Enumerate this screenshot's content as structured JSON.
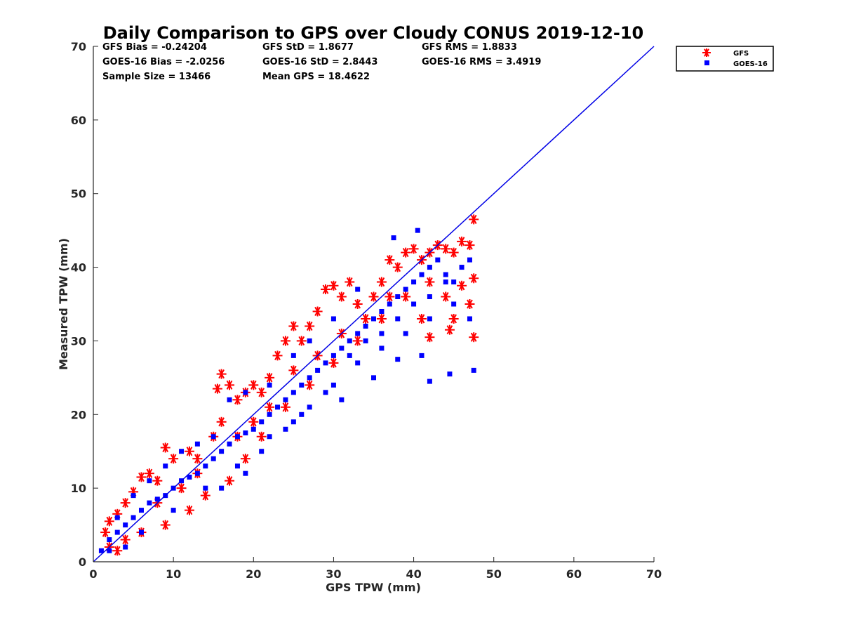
{
  "chart_data": {
    "type": "scatter",
    "title": "Daily Comparison to GPS over Cloudy CONUS 2019-12-10",
    "xlabel": "GPS TPW (mm)",
    "ylabel": "Measured TPW (mm)",
    "xlim": [
      0,
      70
    ],
    "ylim": [
      0,
      70
    ],
    "xticks": [
      "0",
      "10",
      "20",
      "30",
      "40",
      "50",
      "60",
      "70"
    ],
    "yticks": [
      "0",
      "10",
      "20",
      "30",
      "40",
      "50",
      "60",
      "70"
    ],
    "grid": false,
    "legend_position": "outside-top-right",
    "reference_line": {
      "name": "1:1 line",
      "x": [
        0,
        70
      ],
      "y": [
        0,
        70
      ],
      "color": "#0000e6"
    },
    "stats": [
      [
        "GFS Bias = -0.24204",
        "GFS StD = 1.8677",
        "GFS RMS = 1.8833"
      ],
      [
        "GOES-16 Bias = -2.0256",
        "GOES-16 StD = 2.8443",
        "GOES-16 RMS = 3.4919"
      ],
      [
        "Sample Size = 13466",
        "Mean GPS = 18.4622"
      ]
    ],
    "series": [
      {
        "name": "GFS",
        "marker": "asterisk",
        "color": "#ff0000",
        "points": [
          [
            1.5,
            4
          ],
          [
            2,
            5.5
          ],
          [
            3,
            6.5
          ],
          [
            4,
            8
          ],
          [
            5,
            9.5
          ],
          [
            6,
            11.5
          ],
          [
            7,
            12
          ],
          [
            8,
            11
          ],
          [
            9,
            15.5
          ],
          [
            10,
            14
          ],
          [
            12,
            15
          ],
          [
            13,
            14
          ],
          [
            15,
            17
          ],
          [
            16,
            19
          ],
          [
            15.5,
            23.5
          ],
          [
            16,
            25.5
          ],
          [
            17,
            24
          ],
          [
            18,
            22
          ],
          [
            19,
            23
          ],
          [
            20,
            24
          ],
          [
            21,
            23
          ],
          [
            22,
            25
          ],
          [
            23,
            28
          ],
          [
            24,
            30
          ],
          [
            25,
            32
          ],
          [
            26,
            30
          ],
          [
            27,
            32
          ],
          [
            28,
            34
          ],
          [
            29,
            37
          ],
          [
            30,
            37.5
          ],
          [
            31,
            36
          ],
          [
            32,
            38
          ],
          [
            33,
            35
          ],
          [
            35,
            36
          ],
          [
            36,
            38
          ],
          [
            37,
            41
          ],
          [
            38,
            40
          ],
          [
            39,
            42
          ],
          [
            40,
            42.5
          ],
          [
            41,
            41
          ],
          [
            42,
            42
          ],
          [
            43,
            43
          ],
          [
            44,
            42.5
          ],
          [
            45,
            42
          ],
          [
            46,
            43.5
          ],
          [
            47,
            43
          ],
          [
            47.5,
            46.5
          ],
          [
            47.5,
            38.5
          ],
          [
            47,
            35
          ],
          [
            47.5,
            30.5
          ],
          [
            45,
            33
          ],
          [
            44.5,
            31.5
          ],
          [
            42,
            30.5
          ],
          [
            41,
            33
          ],
          [
            44,
            36
          ],
          [
            46,
            37.5
          ],
          [
            2,
            2
          ],
          [
            3,
            1.5
          ],
          [
            4,
            3
          ],
          [
            6,
            4
          ],
          [
            9,
            5
          ],
          [
            12,
            7
          ],
          [
            14,
            9
          ],
          [
            17,
            11
          ],
          [
            19,
            14
          ],
          [
            21,
            17
          ],
          [
            24,
            21
          ],
          [
            27,
            24
          ],
          [
            30,
            27
          ],
          [
            33,
            30
          ],
          [
            36,
            33
          ],
          [
            39,
            36
          ],
          [
            42,
            38
          ],
          [
            8,
            8
          ],
          [
            11,
            10
          ],
          [
            13,
            12
          ],
          [
            18,
            17
          ],
          [
            20,
            19
          ],
          [
            22,
            21
          ],
          [
            25,
            26
          ],
          [
            28,
            28
          ],
          [
            31,
            31
          ],
          [
            34,
            33
          ],
          [
            37,
            36
          ]
        ]
      },
      {
        "name": "GOES-16",
        "marker": "square",
        "color": "#0000ff",
        "points": [
          [
            1,
            1.5
          ],
          [
            2,
            3
          ],
          [
            3,
            4
          ],
          [
            4,
            5
          ],
          [
            5,
            6
          ],
          [
            6,
            7
          ],
          [
            7,
            8
          ],
          [
            8,
            8.5
          ],
          [
            9,
            9
          ],
          [
            10,
            10
          ],
          [
            11,
            11
          ],
          [
            12,
            11.5
          ],
          [
            13,
            12
          ],
          [
            14,
            13
          ],
          [
            15,
            14
          ],
          [
            16,
            15
          ],
          [
            17,
            16
          ],
          [
            18,
            17
          ],
          [
            19,
            17.5
          ],
          [
            20,
            18
          ],
          [
            21,
            19
          ],
          [
            22,
            20
          ],
          [
            23,
            21
          ],
          [
            24,
            22
          ],
          [
            25,
            23
          ],
          [
            26,
            24
          ],
          [
            27,
            25
          ],
          [
            28,
            26
          ],
          [
            29,
            27
          ],
          [
            30,
            28
          ],
          [
            31,
            29
          ],
          [
            32,
            30
          ],
          [
            33,
            31
          ],
          [
            34,
            32
          ],
          [
            35,
            33
          ],
          [
            36,
            34
          ],
          [
            37,
            35
          ],
          [
            38,
            36
          ],
          [
            39,
            37
          ],
          [
            40,
            38
          ],
          [
            41,
            39
          ],
          [
            42,
            40
          ],
          [
            43,
            41
          ],
          [
            44,
            39
          ],
          [
            45,
            38
          ],
          [
            46,
            40
          ],
          [
            47,
            41
          ],
          [
            47.5,
            26
          ],
          [
            42,
            24.5
          ],
          [
            44.5,
            25.5
          ],
          [
            37.5,
            44
          ],
          [
            40.5,
            45
          ],
          [
            33,
            37
          ],
          [
            30,
            33
          ],
          [
            27,
            30
          ],
          [
            25,
            28
          ],
          [
            22,
            24
          ],
          [
            19,
            23
          ],
          [
            17,
            22
          ],
          [
            15,
            17
          ],
          [
            13,
            16
          ],
          [
            11,
            15
          ],
          [
            9,
            13
          ],
          [
            7,
            11
          ],
          [
            5,
            9
          ],
          [
            3,
            6
          ],
          [
            16,
            10
          ],
          [
            19,
            12
          ],
          [
            21,
            15
          ],
          [
            24,
            18
          ],
          [
            27,
            21
          ],
          [
            30,
            24
          ],
          [
            33,
            27
          ],
          [
            36,
            29
          ],
          [
            39,
            31
          ],
          [
            42,
            33
          ],
          [
            45,
            35
          ],
          [
            47,
            33
          ],
          [
            41,
            28
          ],
          [
            38,
            27.5
          ],
          [
            35,
            25
          ],
          [
            31,
            22
          ],
          [
            26,
            20
          ],
          [
            22,
            17
          ],
          [
            18,
            13
          ],
          [
            14,
            10
          ],
          [
            10,
            7
          ],
          [
            6,
            4
          ],
          [
            4,
            2
          ],
          [
            2,
            1.5
          ],
          [
            25,
            19
          ],
          [
            29,
            23
          ],
          [
            32,
            28
          ],
          [
            34,
            30
          ],
          [
            36,
            31
          ],
          [
            38,
            33
          ],
          [
            40,
            35
          ],
          [
            42,
            36
          ],
          [
            44,
            38
          ]
        ]
      }
    ]
  }
}
